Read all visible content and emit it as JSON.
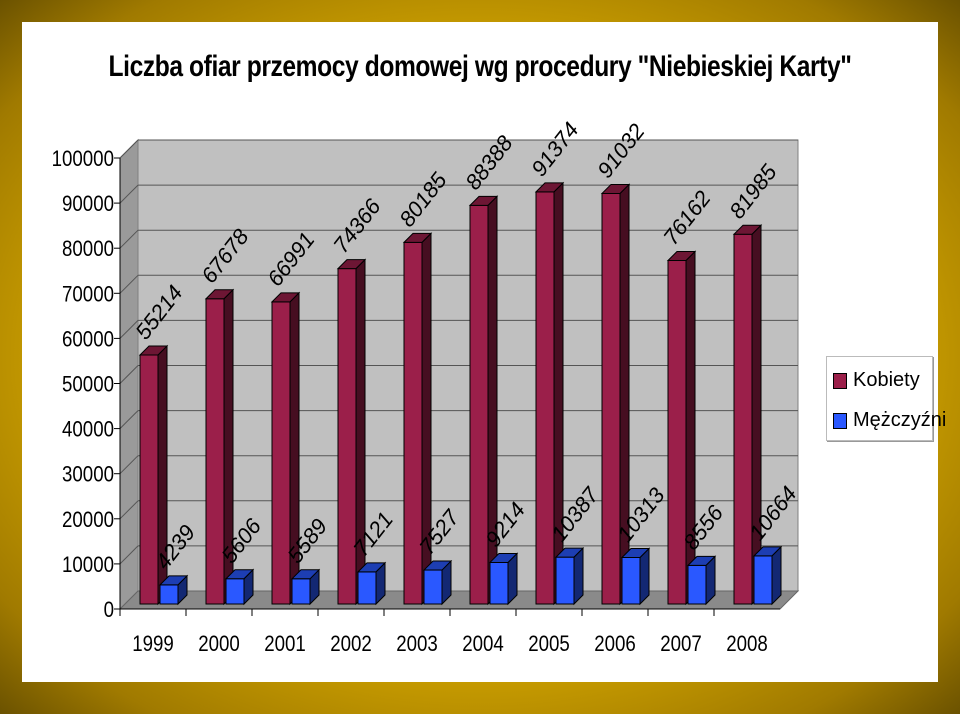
{
  "chart_data": {
    "type": "bar",
    "title": "Liczba ofiar przemocy domowej wg procedury \"Niebieskiej Karty\"",
    "categories": [
      "1999",
      "2000",
      "2001",
      "2002",
      "2003",
      "2004",
      "2005",
      "2006",
      "2007",
      "2008"
    ],
    "series": [
      {
        "name": "Kobiety",
        "color": "#9b1f4a",
        "values": [
          55214,
          67678,
          66991,
          74366,
          80185,
          88388,
          91374,
          91032,
          76162,
          81985
        ]
      },
      {
        "name": "Mężczyźni",
        "color": "#2a58ff",
        "values": [
          4239,
          5606,
          5589,
          7121,
          7527,
          9214,
          10387,
          10313,
          8556,
          10664
        ]
      }
    ],
    "ylim": [
      0,
      100000
    ],
    "yticks": [
      "0",
      "10000",
      "20000",
      "30000",
      "40000",
      "50000",
      "60000",
      "70000",
      "80000",
      "90000",
      "100000"
    ],
    "grid": true,
    "legend_position": "right"
  }
}
